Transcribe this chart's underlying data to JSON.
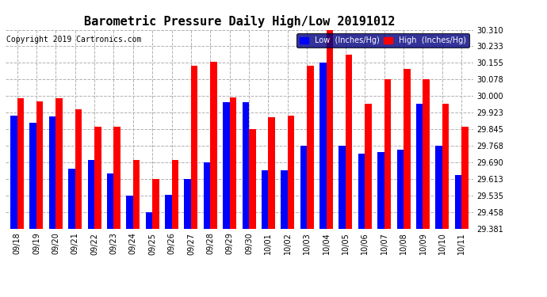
{
  "title": "Barometric Pressure Daily High/Low 20191012",
  "copyright": "Copyright 2019 Cartronics.com",
  "categories": [
    "09/18",
    "09/19",
    "09/20",
    "09/21",
    "09/22",
    "09/23",
    "09/24",
    "09/25",
    "09/26",
    "09/27",
    "09/28",
    "09/29",
    "09/30",
    "10/01",
    "10/02",
    "10/03",
    "10/04",
    "10/05",
    "10/06",
    "10/07",
    "10/08",
    "10/09",
    "10/10",
    "10/11"
  ],
  "low_values": [
    29.907,
    29.876,
    29.906,
    29.66,
    29.7,
    29.638,
    29.535,
    29.456,
    29.538,
    29.613,
    29.69,
    29.97,
    29.97,
    29.654,
    29.654,
    29.77,
    30.155,
    29.768,
    29.73,
    29.74,
    29.748,
    29.965,
    29.768,
    29.63
  ],
  "high_values": [
    29.99,
    29.974,
    29.99,
    29.938,
    29.858,
    29.858,
    29.7,
    29.612,
    29.7,
    30.143,
    30.16,
    29.995,
    29.845,
    29.9,
    29.91,
    30.143,
    30.31,
    30.195,
    29.965,
    30.078,
    30.128,
    30.078,
    29.965,
    29.858
  ],
  "low_color": "#0000ff",
  "high_color": "#ff0000",
  "bg_color": "#ffffff",
  "grid_color": "#b0b0b0",
  "ylim_min": 29.381,
  "ylim_max": 30.31,
  "yticks": [
    29.381,
    29.458,
    29.535,
    29.613,
    29.69,
    29.768,
    29.845,
    29.923,
    30.0,
    30.078,
    30.155,
    30.233,
    30.31
  ],
  "legend_low_label": "Low  (Inches/Hg)",
  "legend_high_label": "High  (Inches/Hg)",
  "title_fontsize": 11,
  "copyright_fontsize": 7,
  "tick_fontsize": 7,
  "bar_width": 0.35
}
